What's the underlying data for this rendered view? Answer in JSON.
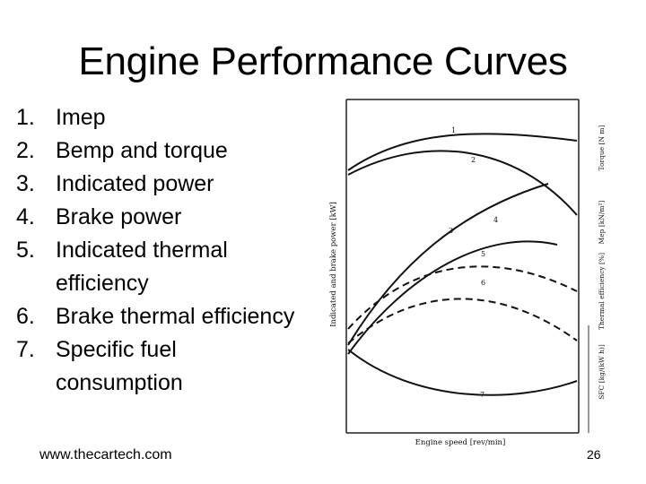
{
  "slide": {
    "title": "Engine Performance Curves",
    "items": [
      {
        "num": "1.",
        "text": "Imep"
      },
      {
        "num": "2.",
        "text": "Bemp and torque"
      },
      {
        "num": "3.",
        "text": "Indicated power"
      },
      {
        "num": "4.",
        "text": "Brake power"
      },
      {
        "num": "5.",
        "text": "Indicated thermal efficiency"
      },
      {
        "num": "6.",
        "text": "Brake thermal efficiency"
      },
      {
        "num": "7.",
        "text": "Specific fuel consumption"
      }
    ],
    "footer_url": "www.thecartech.com",
    "page_number": "26"
  },
  "figure": {
    "x_label": "Engine speed [rev/min]",
    "left_axis_label": "Indicated and brake power [kW]",
    "right_axis_labels": {
      "torque": "Torque [N m]",
      "mep": "Mep [kN/m²]",
      "efficiency": "Thermal efficiency [%]",
      "sfc": "SFC [kg/(kW h)]"
    },
    "curve_labels": {
      "c1": "1",
      "c2": "2",
      "c3": "3",
      "c4": "4",
      "c5": "5",
      "c6": "6",
      "c7": "7"
    }
  }
}
